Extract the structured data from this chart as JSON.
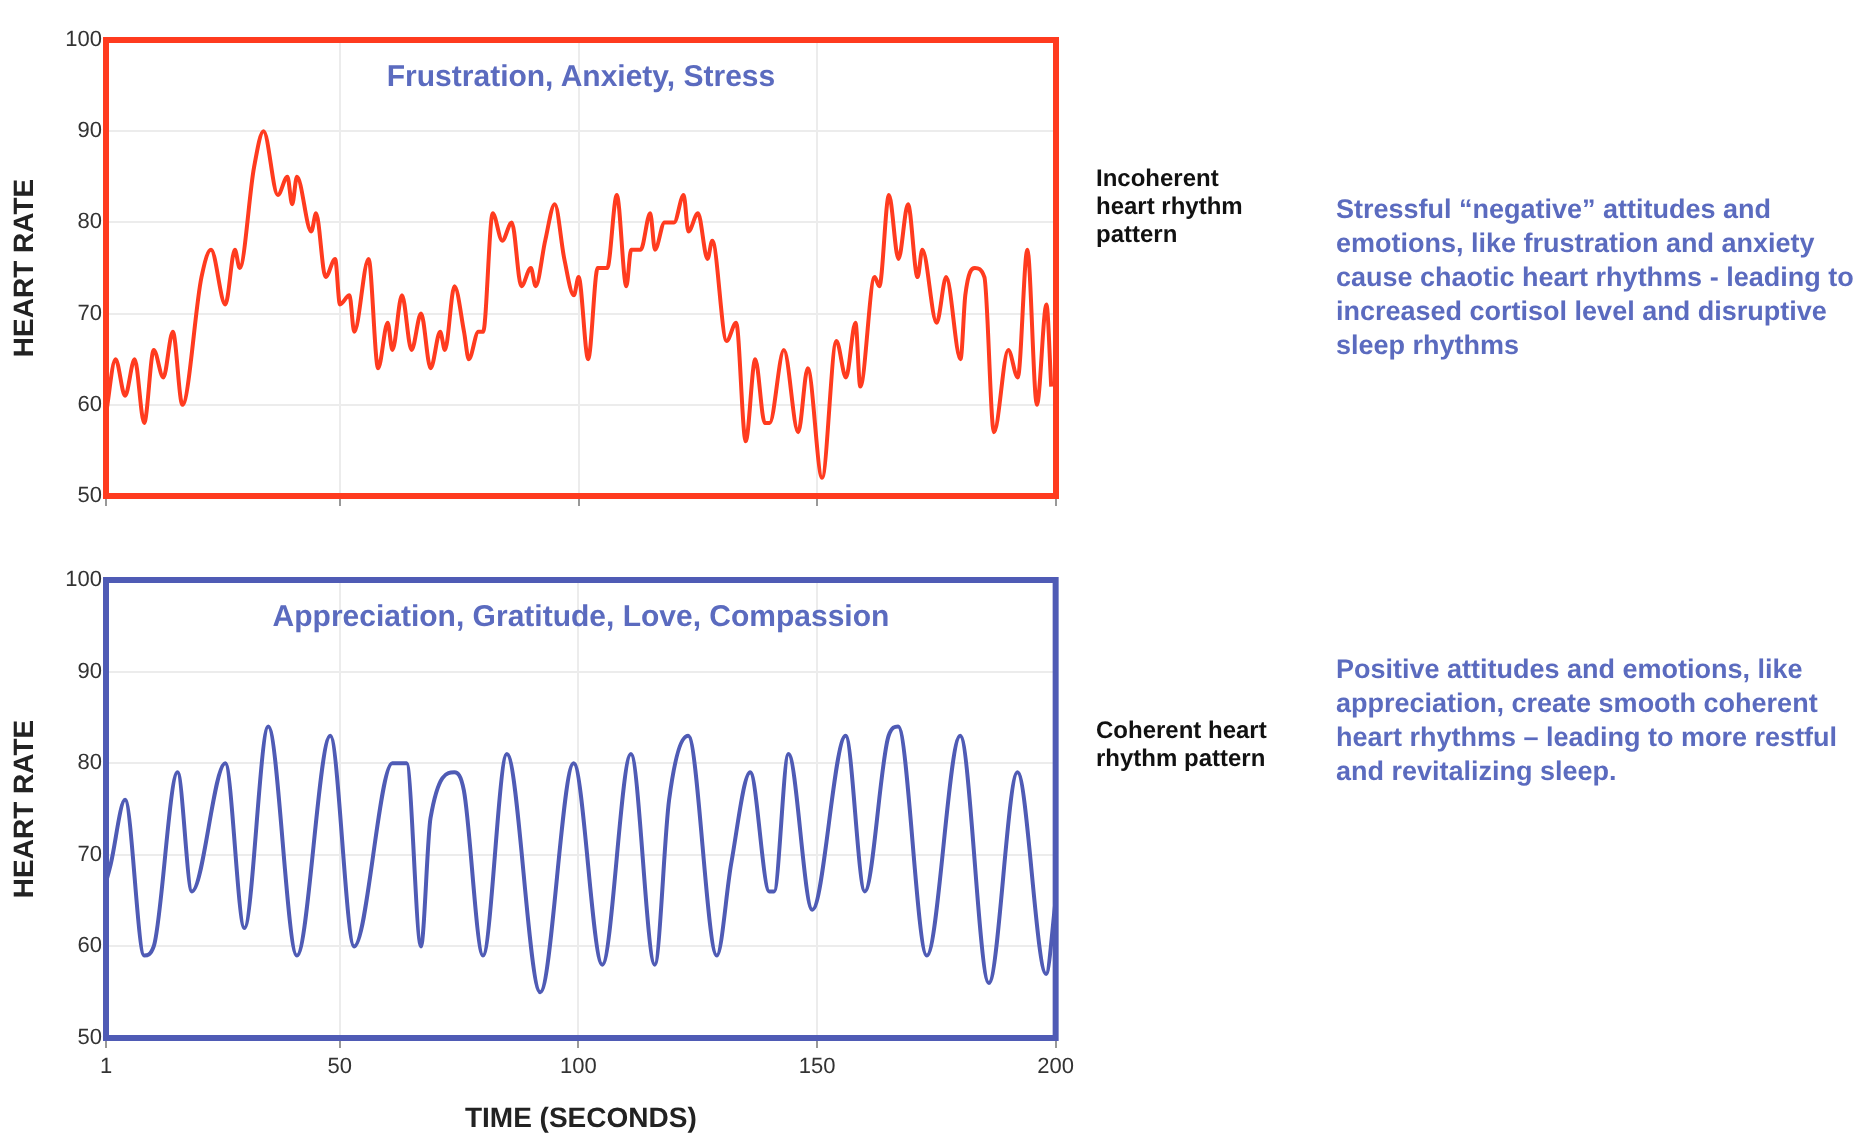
{
  "chart_data": [
    {
      "type": "line",
      "title": "Frustration, Anxiety, Stress",
      "ylabel": "HEART RATE",
      "marker": "none",
      "line_style": "solid",
      "grid": true,
      "tick_labels": "y",
      "xlim": [
        1,
        200
      ],
      "xticks": [
        1,
        50,
        100,
        150,
        200
      ],
      "ylim": [
        50,
        100
      ],
      "yticks": [
        50,
        60,
        70,
        80,
        90,
        100
      ],
      "series": [
        {
          "color": "#ff3b1f",
          "x": [
            1,
            3,
            5,
            7,
            9,
            11,
            13,
            15,
            17,
            21,
            23,
            26,
            28,
            29,
            32,
            34,
            37,
            39,
            40,
            41,
            44,
            45,
            47,
            49,
            50,
            52,
            53,
            56,
            58,
            60,
            61,
            63,
            65,
            67,
            69,
            71,
            72,
            74,
            76,
            77,
            79,
            80,
            82,
            84,
            86,
            88,
            90,
            91,
            93,
            95,
            97,
            99,
            100,
            102,
            104,
            106,
            108,
            110,
            111,
            113,
            115,
            116,
            118,
            120,
            122,
            123,
            125,
            127,
            128,
            131,
            133,
            135,
            137,
            139,
            140,
            143,
            146,
            148,
            151,
            154,
            156,
            158,
            159,
            162,
            163,
            165,
            167,
            169,
            171,
            172,
            175,
            177,
            180,
            181,
            183,
            185,
            187,
            190,
            192,
            194,
            196,
            198,
            199
          ],
          "values": [
            59,
            65,
            61,
            65,
            58,
            66,
            63,
            68,
            60,
            74,
            77,
            71,
            77,
            75,
            86,
            90,
            83,
            85,
            82,
            85,
            79,
            81,
            74,
            76,
            71,
            72,
            68,
            76,
            64,
            69,
            66,
            72,
            66,
            70,
            64,
            68,
            66,
            73,
            68,
            65,
            68,
            68,
            81,
            78,
            80,
            73,
            75,
            73,
            78,
            82,
            76,
            72,
            74,
            65,
            75,
            75,
            83,
            73,
            77,
            77,
            81,
            77,
            80,
            80,
            83,
            79,
            81,
            76,
            78,
            67,
            69,
            56,
            65,
            58,
            58,
            66,
            57,
            64,
            52,
            67,
            63,
            69,
            62,
            74,
            73,
            83,
            76,
            82,
            74,
            77,
            69,
            74,
            65,
            72,
            75,
            74,
            57,
            66,
            63,
            77,
            60,
            71,
            62
          ]
        }
      ],
      "annotations": [
        "Incoherent heart rhythm pattern",
        "Stressful “negative” attitudes and emotions, like frustration and anxiety cause chaotic heart rhythms - leading to increased cortisol level and disruptive sleep rhythms"
      ]
    },
    {
      "type": "line",
      "title": "Appreciation, Gratitude, Love, Compassion",
      "xlabel": "TIME (SECONDS)",
      "ylabel": "HEART RATE",
      "marker": "none",
      "line_style": "solid",
      "grid": true,
      "xlim": [
        1,
        200
      ],
      "xticks": [
        1,
        50,
        100,
        150,
        200
      ],
      "ylim": [
        50,
        100
      ],
      "yticks": [
        50,
        60,
        70,
        80,
        90,
        100
      ],
      "series": [
        {
          "color": "#4f5bb5",
          "x": [
            1,
            2,
            5,
            9,
            11,
            16,
            19,
            26,
            30,
            35,
            41,
            48,
            53,
            61,
            64,
            67,
            69,
            74,
            76,
            80,
            85,
            92,
            99,
            105,
            111,
            116,
            119,
            123,
            129,
            132,
            136,
            140,
            141,
            144,
            149,
            156,
            160,
            165,
            167,
            173,
            180,
            186,
            192,
            198,
            200
          ],
          "values": [
            67,
            69,
            76,
            59,
            60,
            79,
            66,
            80,
            62,
            84,
            59,
            83,
            60,
            80,
            80,
            60,
            74,
            79,
            77,
            59,
            81,
            55,
            80,
            58,
            81,
            58,
            76,
            83,
            59,
            69,
            79,
            66,
            66,
            81,
            64,
            83,
            66,
            83,
            84,
            59,
            83,
            56,
            79,
            57,
            65
          ]
        }
      ],
      "annotations": [
        "Coherent heart rhythm pattern",
        "Positive attitudes and emotions, like appreciation, create smooth coherent heart rhythms – leading to more restful and revitalizing sleep."
      ]
    }
  ]
}
